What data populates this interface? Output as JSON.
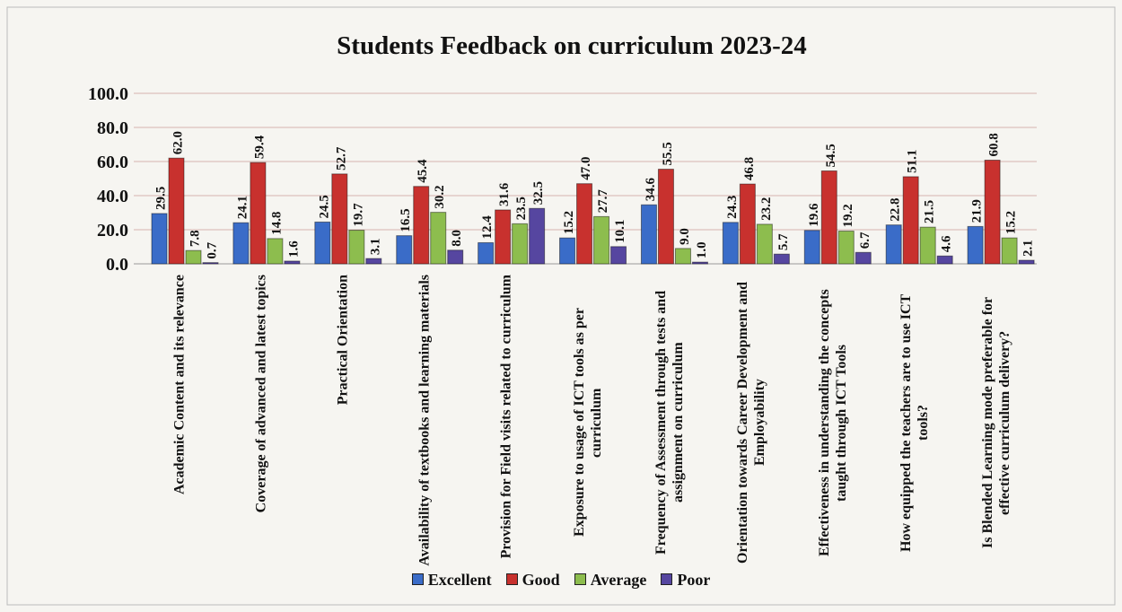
{
  "chart_data": {
    "type": "bar",
    "title": "Students Feedback on curriculum 2023-24",
    "categories": [
      "Academic Content and its relevance",
      "Coverage of advanced and latest topics",
      "Practical Orientation",
      "Availability of textbooks and learning materials",
      "Provision for Field visits related to curriculum",
      "Exposure to usage of ICT tools as per curriculum",
      "Frequency of Assessment through tests and assignment on curriculum",
      "Orientation  towards Career Development and Employability",
      "Effectiveness in understanding the concepts taught through ICT Tools",
      "How equipped the teachers are to use ICT tools?",
      "Is Blended Learning mode preferable for effective curriculum delivery?"
    ],
    "series": [
      {
        "name": "Excellent",
        "color": "#3a6cc8",
        "values": [
          29.5,
          24.1,
          24.5,
          16.5,
          12.4,
          15.2,
          34.6,
          24.3,
          19.6,
          22.8,
          21.9
        ],
        "value_labels": [
          "29.5",
          "24.1",
          "24.5",
          "16.5",
          "12.4",
          "15.2",
          "34.6",
          "24.3",
          "19.6",
          "22.8",
          "21.9"
        ]
      },
      {
        "name": "Good",
        "color": "#c8312e",
        "values": [
          62.0,
          59.4,
          52.7,
          45.4,
          31.6,
          47.0,
          55.5,
          46.8,
          54.5,
          51.1,
          60.8
        ],
        "value_labels": [
          "62.0",
          "59.4",
          "52.7",
          "45.4",
          "31.6",
          "47.0",
          "55.5",
          "46.8",
          "54.5",
          "51.1",
          "60.8"
        ]
      },
      {
        "name": "Average",
        "color": "#8dbd4e",
        "values": [
          7.8,
          14.8,
          19.7,
          30.2,
          23.5,
          27.7,
          9.0,
          23.2,
          19.2,
          21.5,
          15.2
        ],
        "value_labels": [
          "7.8",
          "14.8",
          "19.7",
          "30.2",
          "23.5",
          "27.7",
          "9.0",
          "23.2",
          "19.2",
          "21.5",
          "15.2"
        ]
      },
      {
        "name": "Poor",
        "color": "#5646a0",
        "values": [
          0.7,
          1.6,
          3.1,
          8.0,
          32.5,
          10.1,
          1.0,
          5.7,
          6.7,
          4.6,
          2.1
        ],
        "value_labels": [
          "0.7",
          "1.6",
          "3.1",
          "8.0",
          "32.5",
          "10.1",
          "1.0",
          "5.7",
          "6.7",
          "4.6",
          "2.1"
        ]
      }
    ],
    "ylim": [
      0,
      100
    ],
    "yticks": [
      {
        "value": 0,
        "label": "0.0"
      },
      {
        "value": 20,
        "label": "20.0"
      },
      {
        "value": 40,
        "label": "40.0"
      },
      {
        "value": 60,
        "label": "60.0"
      },
      {
        "value": 80,
        "label": "80.0"
      },
      {
        "value": 100,
        "label": "100.0"
      }
    ],
    "grid": true,
    "legend": "bottom"
  }
}
